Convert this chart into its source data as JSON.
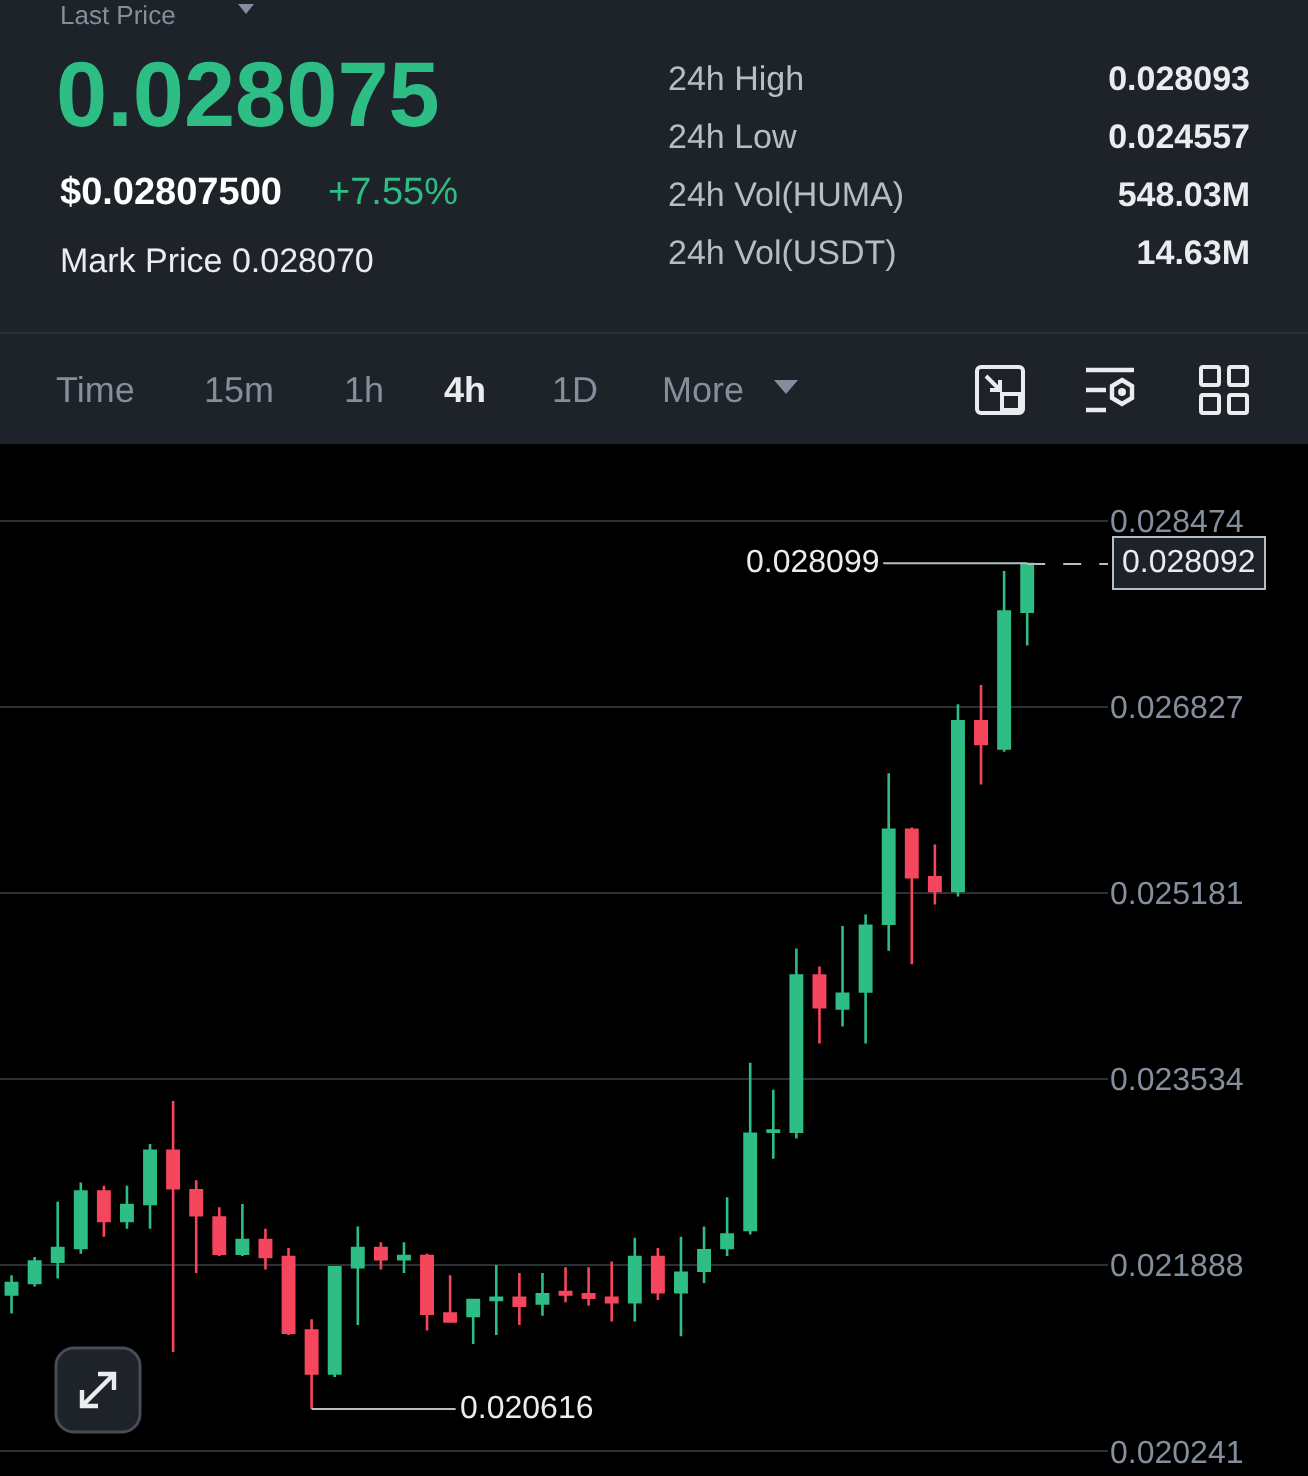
{
  "chart_data": {
    "type": "candlestick",
    "title": "0.028075",
    "annotations": [
      "Last Price",
      "$0.02807500",
      "+7.55%",
      "Mark Price 0.028070",
      "24h High",
      "0.028093",
      "24h Low",
      "0.024557",
      "24h Vol(HUMA)",
      "548.03M",
      "24h Vol(USDT)",
      "14.63M",
      "Time",
      "15m",
      "1h",
      "4h",
      "1D",
      "More",
      "0.028099",
      "0.020616"
    ],
    "categories": [
      null,
      null,
      null,
      null,
      null,
      null,
      null,
      null,
      null,
      null,
      null,
      null,
      null,
      null,
      null,
      null,
      null,
      null,
      null,
      null,
      null,
      null,
      null,
      null,
      null,
      null,
      null,
      null,
      null,
      null,
      null,
      null,
      null,
      null,
      null,
      null,
      null,
      null,
      null,
      null,
      null,
      null,
      null,
      null,
      null
    ],
    "ohlc": [
      [
        0.02163,
        0.0218,
        0.02146,
        0.02173
      ],
      [
        0.02173,
        0.02196,
        0.0217,
        0.02192
      ],
      [
        0.02192,
        0.02245,
        0.02177,
        0.02204
      ],
      [
        0.02204,
        0.02262,
        0.02199,
        0.02254
      ],
      [
        0.02254,
        0.02259,
        0.02214,
        0.02228
      ],
      [
        0.02228,
        0.02259,
        0.02221,
        0.02242
      ],
      [
        0.02243,
        0.02296,
        0.02221,
        0.0229
      ],
      [
        0.0229,
        0.02334,
        0.02112,
        0.02257
      ],
      [
        0.02255,
        0.02264,
        0.02182,
        0.02233
      ],
      [
        0.02231,
        0.0224,
        0.02197,
        0.02199
      ],
      [
        0.02199,
        0.02243,
        0.02197,
        0.02211
      ],
      [
        0.02211,
        0.02221,
        0.02185,
        0.02196
      ],
      [
        0.02196,
        0.02204,
        0.02127,
        0.02129
      ],
      [
        0.02131,
        0.02141,
        0.020616,
        0.02093
      ],
      [
        0.02093,
        0.02187,
        0.0209,
        0.02187
      ],
      [
        0.02187,
        0.02223,
        0.02136,
        0.02204
      ],
      [
        0.02204,
        0.02209,
        0.02185,
        0.02194
      ],
      [
        0.02194,
        0.02209,
        0.02182,
        0.02197
      ],
      [
        0.02197,
        0.02199,
        0.02131,
        0.02146
      ],
      [
        0.02146,
        0.0218,
        0.02138,
        0.02139
      ],
      [
        0.02144,
        0.02158,
        0.02119,
        0.02158
      ],
      [
        0.02158,
        0.02189,
        0.02127,
        0.0216
      ],
      [
        0.0216,
        0.02182,
        0.02136,
        0.02153
      ],
      [
        0.02155,
        0.02182,
        0.02144,
        0.02163
      ],
      [
        0.02165,
        0.02187,
        0.02156,
        0.02163
      ],
      [
        0.02163,
        0.02187,
        0.02153,
        0.0216
      ],
      [
        0.0216,
        0.02192,
        0.02139,
        0.02156
      ],
      [
        0.02156,
        0.02213,
        0.02139,
        0.02196
      ],
      [
        0.02196,
        0.02204,
        0.02158,
        0.02165
      ],
      [
        0.02165,
        0.02214,
        0.02126,
        0.02182
      ],
      [
        0.02184,
        0.02223,
        0.02173,
        0.02202
      ],
      [
        0.02204,
        0.02249,
        0.02197,
        0.02216
      ],
      [
        0.0222,
        0.02368,
        0.02216,
        0.02305
      ],
      [
        0.02307,
        0.02344,
        0.02283,
        0.02308
      ],
      [
        0.02307,
        0.02469,
        0.02301,
        0.02445
      ],
      [
        0.02445,
        0.02453,
        0.02385,
        0.02417
      ],
      [
        0.02416,
        0.02489,
        0.024,
        0.02429
      ],
      [
        0.02431,
        0.02499,
        0.02385,
        0.02489
      ],
      [
        0.02491,
        0.02624,
        0.02467,
        0.02574
      ],
      [
        0.02574,
        0.02576,
        0.02455,
        0.02532
      ],
      [
        0.02532,
        0.02561,
        0.02508,
        0.0252
      ],
      [
        0.0252,
        0.02685,
        0.02515,
        0.0267
      ],
      [
        0.0267,
        0.02702,
        0.02614,
        0.0265
      ],
      [
        0.02646,
        0.02803,
        0.02643,
        0.02767
      ],
      [
        0.02767,
        0.028099,
        0.02737,
        0.028092
      ]
    ],
    "colors": [
      "#2ebd85",
      "#2ebd85",
      "#2ebd85",
      "#2ebd85",
      "#f6465d",
      "#2ebd85",
      "#2ebd85",
      "#f6465d",
      "#f6465d",
      "#f6465d",
      "#2ebd85",
      "#f6465d",
      "#f6465d",
      "#f6465d",
      "#2ebd85",
      "#2ebd85",
      "#f6465d",
      "#2ebd85",
      "#f6465d",
      "#f6465d",
      "#2ebd85",
      "#2ebd85",
      "#f6465d",
      "#2ebd85",
      "#f6465d",
      "#f6465d",
      "#f6465d",
      "#2ebd85",
      "#f6465d",
      "#2ebd85",
      "#2ebd85",
      "#2ebd85",
      "#2ebd85",
      "#2ebd85",
      "#2ebd85",
      "#f6465d",
      "#2ebd85",
      "#2ebd85",
      "#2ebd85",
      "#f6465d",
      "#f6465d",
      "#2ebd85",
      "#f6465d",
      "#2ebd85",
      "#2ebd85"
    ],
    "ylim": [
      0.0202,
      0.0291
    ],
    "yticks": [
      0.020241,
      0.021888,
      0.023534,
      0.025181,
      0.026827,
      0.028474
    ],
    "ref_lines": [
      {
        "axis": "y",
        "value": 0.028092,
        "label": "0.028092",
        "line_style": "dashed"
      }
    ],
    "grid": "y"
  }
}
